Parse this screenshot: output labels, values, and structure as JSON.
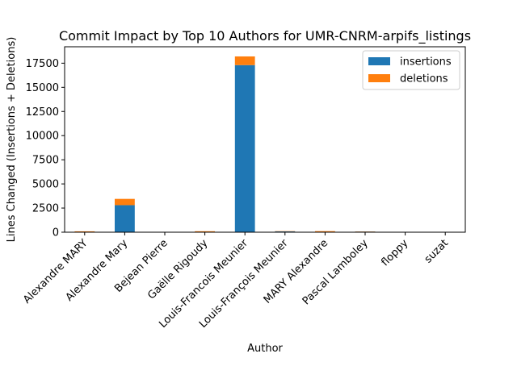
{
  "chart_data": {
    "type": "bar",
    "stacked": true,
    "title": "Commit Impact by Top 10 Authors for UMR-CNRM-arpifs_listings",
    "xlabel": "Author",
    "ylabel": "Lines Changed (Insertions + Deletions)",
    "categories": [
      "Alexandre MARY",
      "Alexandre Mary",
      "Bejean Pierre",
      "Gaëlle Rigoudy",
      "Louis-Francois Meunier",
      "Louis-François Meunier",
      "MARY Alexandre",
      "Pascal Lamboley",
      "floppy",
      "suzat"
    ],
    "series": [
      {
        "name": "insertions",
        "color": "#1f77b4",
        "values": [
          30,
          2800,
          5,
          40,
          17300,
          80,
          40,
          60,
          5,
          5
        ]
      },
      {
        "name": "deletions",
        "color": "#ff7f0e",
        "values": [
          60,
          650,
          2,
          60,
          900,
          30,
          70,
          20,
          2,
          2
        ]
      }
    ],
    "ylim": [
      0,
      19200
    ],
    "yticks": [
      0,
      2500,
      5000,
      7500,
      10000,
      12500,
      15000,
      17500
    ],
    "ytick_labels": [
      "0",
      "2500",
      "5000",
      "7500",
      "10000",
      "12500",
      "15000",
      "17500"
    ],
    "legend_position": "top-right",
    "grid": false
  }
}
